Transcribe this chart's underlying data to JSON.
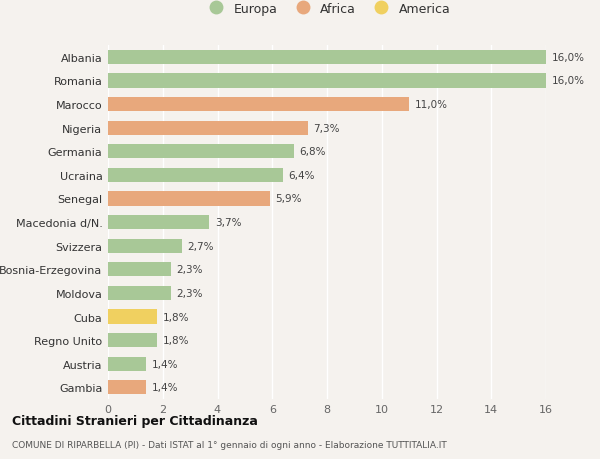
{
  "countries": [
    "Albania",
    "Romania",
    "Marocco",
    "Nigeria",
    "Germania",
    "Ucraina",
    "Senegal",
    "Macedonia d/N.",
    "Svizzera",
    "Bosnia-Erzegovina",
    "Moldova",
    "Cuba",
    "Regno Unito",
    "Austria",
    "Gambia"
  ],
  "values": [
    16.0,
    16.0,
    11.0,
    7.3,
    6.8,
    6.4,
    5.9,
    3.7,
    2.7,
    2.3,
    2.3,
    1.8,
    1.8,
    1.4,
    1.4
  ],
  "continents": [
    "Europa",
    "Europa",
    "Africa",
    "Africa",
    "Europa",
    "Europa",
    "Africa",
    "Europa",
    "Europa",
    "Europa",
    "Europa",
    "America",
    "Europa",
    "Europa",
    "Africa"
  ],
  "labels": [
    "16,0%",
    "16,0%",
    "11,0%",
    "7,3%",
    "6,8%",
    "6,4%",
    "5,9%",
    "3,7%",
    "2,7%",
    "2,3%",
    "2,3%",
    "1,8%",
    "1,8%",
    "1,4%",
    "1,4%"
  ],
  "colors": {
    "Europa": "#a8c897",
    "Africa": "#e8a87c",
    "America": "#f0d060"
  },
  "xlim": [
    0,
    16
  ],
  "xticks": [
    0,
    2,
    4,
    6,
    8,
    10,
    12,
    14,
    16
  ],
  "title": "Cittadini Stranieri per Cittadinanza",
  "subtitle": "COMUNE DI RIPARBELLA (PI) - Dati ISTAT al 1° gennaio di ogni anno - Elaborazione TUTTITALIA.IT",
  "background_color": "#f5f2ee",
  "legend_entries": [
    "Europa",
    "Africa",
    "America"
  ],
  "bar_height": 0.6,
  "legend_circle_colors": {
    "Europa": "#a8c897",
    "Africa": "#e8a87c",
    "America": "#f0d060"
  }
}
